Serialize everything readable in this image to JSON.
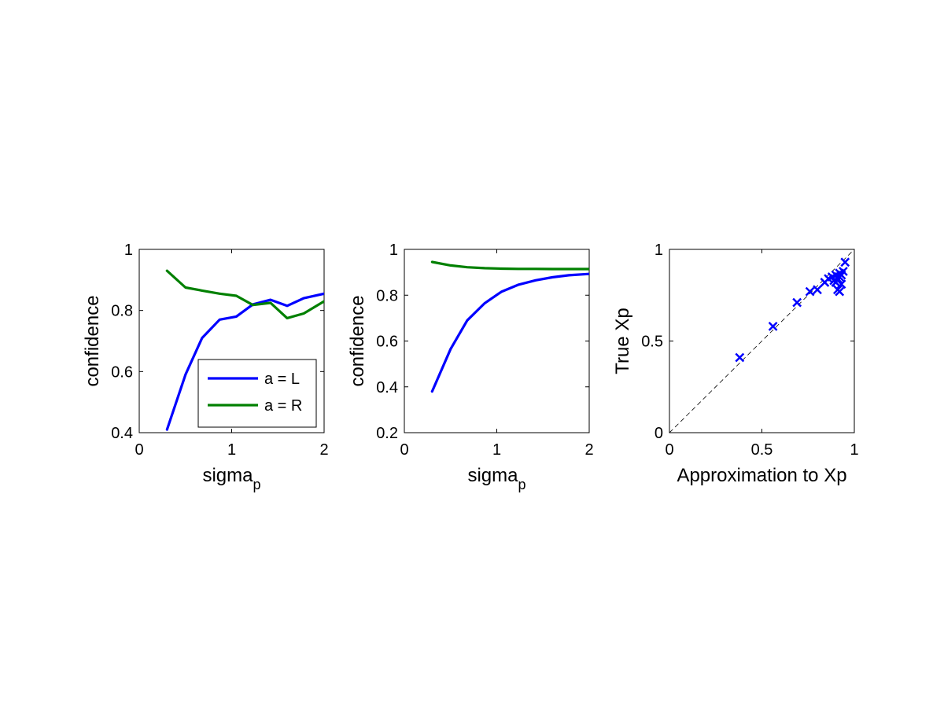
{
  "chart_data": [
    {
      "type": "line",
      "xlabel": "sigma",
      "xlabel_sub": "p",
      "ylabel": "confidence",
      "xlim": [
        0,
        2
      ],
      "ylim": [
        0.4,
        1
      ],
      "xticks": [
        "0",
        "1",
        "2"
      ],
      "yticks": [
        "0.4",
        "0.6",
        "0.8",
        "1"
      ],
      "xtick_values": [
        0,
        1,
        2
      ],
      "ytick_values": [
        0.4,
        0.6,
        0.8,
        1.0
      ],
      "legend": {
        "placement": "bottom-right"
      },
      "series": [
        {
          "name": "a = L",
          "color": "#0000ff",
          "x": [
            0.3,
            0.5,
            0.68,
            0.87,
            1.05,
            1.23,
            1.42,
            1.6,
            1.78,
            2.0
          ],
          "y": [
            0.41,
            0.59,
            0.71,
            0.77,
            0.78,
            0.82,
            0.835,
            0.815,
            0.84,
            0.855
          ]
        },
        {
          "name": "a = R",
          "color": "#008000",
          "x": [
            0.3,
            0.5,
            0.68,
            0.87,
            1.05,
            1.23,
            1.42,
            1.6,
            1.78,
            2.0
          ],
          "y": [
            0.93,
            0.875,
            0.865,
            0.855,
            0.848,
            0.818,
            0.825,
            0.775,
            0.79,
            0.83
          ]
        }
      ]
    },
    {
      "type": "line",
      "xlabel": "sigma",
      "xlabel_sub": "p",
      "ylabel": "confidence",
      "xlim": [
        0,
        2
      ],
      "ylim": [
        0.2,
        1
      ],
      "xticks": [
        "0",
        "1",
        "2"
      ],
      "yticks": [
        "0.2",
        "0.4",
        "0.6",
        "0.8",
        "1"
      ],
      "xtick_values": [
        0,
        1,
        2
      ],
      "ytick_values": [
        0.2,
        0.4,
        0.6,
        0.8,
        1.0
      ],
      "series": [
        {
          "color": "#0000ff",
          "x": [
            0.3,
            0.5,
            0.68,
            0.87,
            1.05,
            1.23,
            1.42,
            1.6,
            1.78,
            2.0
          ],
          "y": [
            0.38,
            0.565,
            0.69,
            0.765,
            0.815,
            0.845,
            0.865,
            0.878,
            0.887,
            0.893
          ]
        },
        {
          "color": "#008000",
          "x": [
            0.3,
            0.5,
            0.68,
            0.87,
            1.05,
            1.23,
            1.42,
            1.6,
            1.78,
            2.0
          ],
          "y": [
            0.945,
            0.93,
            0.922,
            0.918,
            0.916,
            0.915,
            0.915,
            0.914,
            0.914,
            0.914
          ]
        }
      ]
    },
    {
      "type": "scatter",
      "xlabel": "Approximation to Xp",
      "ylabel": "True Xp",
      "xlim": [
        0,
        1
      ],
      "ylim": [
        0,
        1
      ],
      "xticks": [
        "0",
        "0.5",
        "1"
      ],
      "yticks": [
        "0",
        "0.5",
        "1"
      ],
      "xtick_values": [
        0,
        0.5,
        1
      ],
      "ytick_values": [
        0,
        0.5,
        1
      ],
      "reference_line": "y = x (dashed)",
      "series": [
        {
          "color": "#0000ff",
          "marker": "x",
          "x": [
            0.38,
            0.56,
            0.69,
            0.76,
            0.8,
            0.84,
            0.86,
            0.88,
            0.89,
            0.9,
            0.9,
            0.91,
            0.92,
            0.92,
            0.93,
            0.94,
            0.95,
            0.91,
            0.92,
            0.93
          ],
          "y": [
            0.41,
            0.58,
            0.71,
            0.77,
            0.78,
            0.82,
            0.84,
            0.85,
            0.83,
            0.86,
            0.82,
            0.84,
            0.85,
            0.87,
            0.86,
            0.88,
            0.93,
            0.78,
            0.77,
            0.81
          ]
        }
      ]
    }
  ]
}
